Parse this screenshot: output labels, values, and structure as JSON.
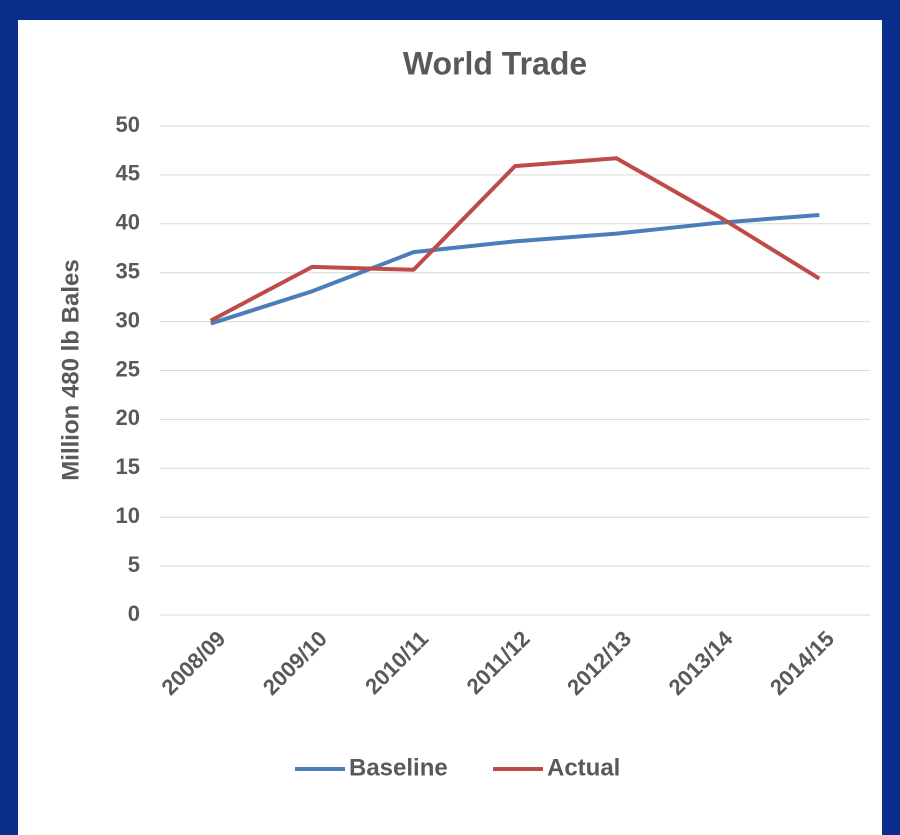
{
  "chart_data": {
    "type": "line",
    "title": "World Trade",
    "y_label": "Million 480 lb Bales",
    "categories": [
      "2008/09",
      "2009/10",
      "2010/11",
      "2011/12",
      "2012/13",
      "2013/14",
      "2014/15"
    ],
    "series": [
      {
        "name": "Baseline",
        "color": "#4a7ebb",
        "values": [
          29.8,
          33.1,
          37.1,
          38.2,
          39.0,
          40.1,
          40.9
        ]
      },
      {
        "name": "Actual",
        "color": "#be4b48",
        "values": [
          30.1,
          35.6,
          35.3,
          45.9,
          46.7,
          40.8,
          34.4
        ]
      }
    ],
    "ylim": [
      0,
      50
    ],
    "yticks": [
      0,
      5,
      10,
      15,
      20,
      25,
      30,
      35,
      40,
      45,
      50
    ],
    "grid": true,
    "legend": "bottom"
  }
}
